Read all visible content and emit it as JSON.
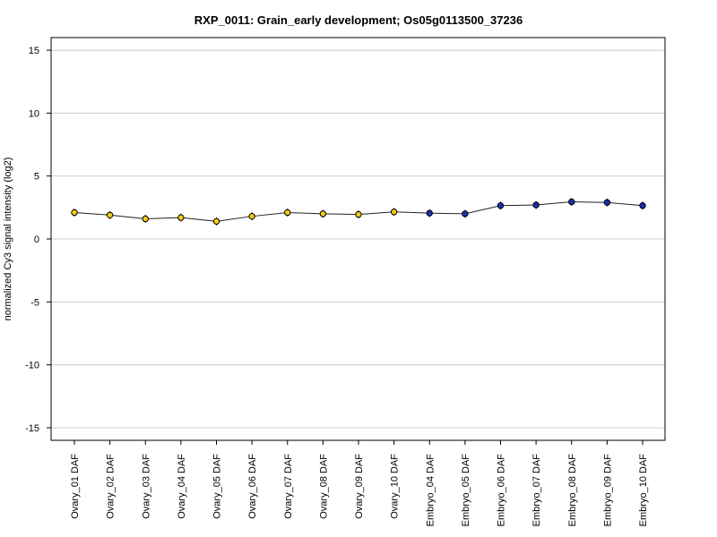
{
  "colors": {
    "ovary": "#f2cc12",
    "embryo": "#1c2fb0",
    "line": "#222222",
    "grid": "#cccccc",
    "frame": "#000000"
  },
  "chart_data": {
    "type": "line",
    "title": "RXP_0011: Grain_early development; Os05g0113500_37236",
    "xlabel": "",
    "ylabel": "normalized Cy3 signal intensity (log2)",
    "ylim": [
      -16,
      16
    ],
    "yticks": [
      -15,
      -10,
      -5,
      0,
      5,
      10,
      15
    ],
    "grid": true,
    "legend": "none",
    "categories": [
      "Ovary_01 DAF",
      "Ovary_02 DAF",
      "Ovary_03 DAF",
      "Ovary_04 DAF",
      "Ovary_05 DAF",
      "Ovary_06 DAF",
      "Ovary_07 DAF",
      "Ovary_08 DAF",
      "Ovary_09 DAF",
      "Ovary_10 DAF",
      "Embryo_04 DAF",
      "Embryo_05 DAF",
      "Embryo_06 DAF",
      "Embryo_07 DAF",
      "Embryo_08 DAF",
      "Embryo_09 DAF",
      "Embryo_10 DAF"
    ],
    "series": [
      {
        "values": [
          2.1,
          1.9,
          1.6,
          1.7,
          1.4,
          1.8,
          2.1,
          2.0,
          1.95,
          2.15,
          2.05,
          2.0,
          2.65,
          2.7,
          2.95,
          2.9,
          2.65
        ],
        "point_colors": [
          "ovary",
          "ovary",
          "ovary",
          "ovary",
          "ovary",
          "ovary",
          "ovary",
          "ovary",
          "ovary",
          "ovary",
          "embryo",
          "embryo",
          "embryo",
          "embryo",
          "embryo",
          "embryo",
          "embryo"
        ]
      }
    ]
  }
}
